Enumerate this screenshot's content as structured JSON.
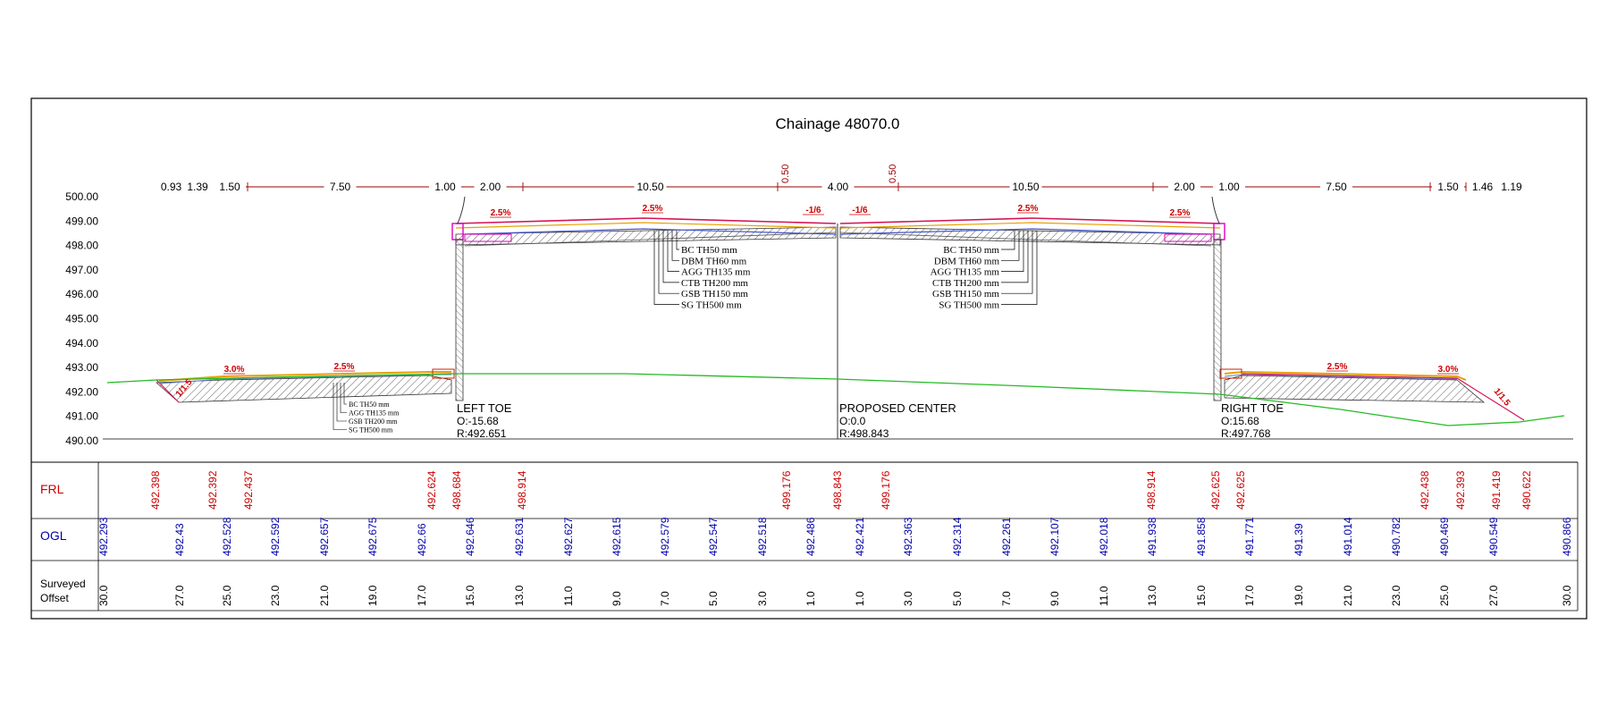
{
  "title": "Chainage 48070.0",
  "colors": {
    "frl": "#cc0000",
    "ogl": "#0000aa",
    "ground_line": "#22bb22",
    "road_surface": "#d4145a",
    "kerb": "#e000c0",
    "dim_line": "#990000",
    "frame": "#000000"
  },
  "elevation_axis": {
    "labels": [
      "500.00",
      "499.00",
      "498.00",
      "497.00",
      "496.00",
      "495.00",
      "494.00",
      "493.00",
      "492.00",
      "491.00",
      "490.00"
    ]
  },
  "dimensions": {
    "segments": [
      "0.93",
      "1.39",
      "1.50",
      "7.50",
      "1.00",
      "2.00",
      "10.50",
      "4.00",
      "10.50",
      "2.00",
      "1.00",
      "7.50",
      "1.50",
      "1.46",
      "1.19"
    ],
    "median_offsets": [
      "0.50",
      "0.50"
    ]
  },
  "slopes": {
    "left_outer": "1/1.5",
    "left_verge": "3.0%",
    "left_service": "2.5%",
    "left_footpath": "2.5%",
    "left_carriageway": "2.5%",
    "left_median": "-1/6",
    "right_median": "-1/6",
    "right_carriageway": "2.5%",
    "right_footpath": "2.5%",
    "right_service": "2.5%",
    "right_verge": "3.0%",
    "right_outer": "1/1.5"
  },
  "layers_main_left": [
    "BC TH50 mm",
    "DBM TH60 mm",
    "AGG TH135 mm",
    "CTB TH200 mm",
    "GSB TH150 mm",
    "SG TH500 mm"
  ],
  "layers_main_right": [
    "BC TH50 mm",
    "DBM TH60 mm",
    "AGG TH135 mm",
    "CTB TH200 mm",
    "GSB TH150 mm",
    "SG TH500 mm"
  ],
  "layers_service": [
    "BC TH50 mm",
    "AGG TH135 mm",
    "GSB TH200 mm",
    "SG TH500 mm"
  ],
  "markers": {
    "left_toe": {
      "name": "LEFT TOE",
      "offset": "O:-15.68",
      "level": "R:492.651"
    },
    "center": {
      "name": "PROPOSED CENTER",
      "offset": "O:0.0",
      "level": "R:498.843"
    },
    "right_toe": {
      "name": "RIGHT TOE",
      "offset": "O:15.68",
      "level": "R:497.768"
    }
  },
  "table": {
    "row_labels": {
      "frl": "FRL",
      "ogl": "OGL",
      "offset": "Surveyed\nOffset"
    },
    "frl": [
      "492.398",
      "492.392",
      "492.437",
      "492.624",
      "498.684",
      "498.914",
      "499.176",
      "498.843",
      "499.176",
      "498.914",
      "492.625",
      "492.625",
      "492.438",
      "492.393",
      "491.419",
      "490.622"
    ],
    "ogl": [
      "492.293",
      "492.43",
      "492.528",
      "492.592",
      "492.657",
      "492.675",
      "492.66",
      "492.646",
      "492.631",
      "492.627",
      "492.615",
      "492.579",
      "492.547",
      "492.518",
      "492.486",
      "492.421",
      "492.363",
      "492.314",
      "492.261",
      "492.107",
      "492.018",
      "491.938",
      "491.858",
      "491.771",
      "491.39",
      "491.014",
      "490.782",
      "490.469",
      "490.549",
      "490.866"
    ],
    "offsets": [
      "30.0",
      "27.0",
      "25.0",
      "23.0",
      "21.0",
      "19.0",
      "17.0",
      "15.0",
      "13.0",
      "11.0",
      "9.0",
      "7.0",
      "5.0",
      "3.0",
      "1.0",
      "1.0",
      "3.0",
      "5.0",
      "7.0",
      "9.0",
      "11.0",
      "13.0",
      "15.0",
      "17.0",
      "19.0",
      "21.0",
      "23.0",
      "25.0",
      "27.0",
      "30.0"
    ]
  }
}
